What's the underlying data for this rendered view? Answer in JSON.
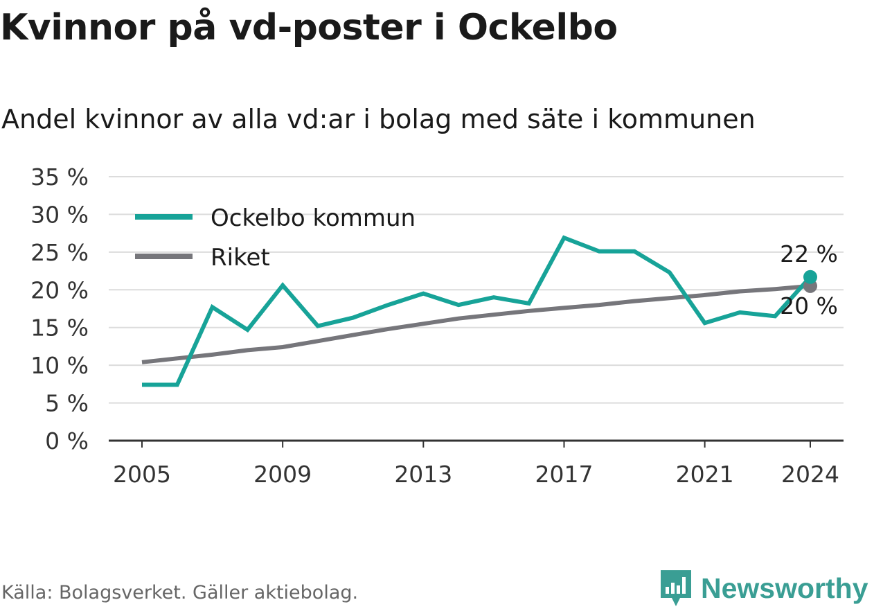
{
  "title": "Kvinnor på vd-poster i Ockelbo",
  "subtitle": "Andel kvinnor av alla vd:ar i bolag med säte i kommunen",
  "source": "Källa: Bolagsverket. Gäller aktiebolag.",
  "brand": {
    "name": "Newsworthy",
    "color": "#3a9e94",
    "icon": "bar-chart-icon"
  },
  "chart_data": {
    "type": "line",
    "x": [
      2005,
      2006,
      2007,
      2008,
      2009,
      2010,
      2011,
      2012,
      2013,
      2014,
      2015,
      2016,
      2017,
      2018,
      2019,
      2020,
      2021,
      2022,
      2023,
      2024
    ],
    "x_ticks": [
      "2005",
      "2009",
      "2013",
      "2017",
      "2021",
      "2024"
    ],
    "y_ticks": [
      "0 %",
      "5 %",
      "10 %",
      "15 %",
      "20 %",
      "25 %",
      "30 %",
      "35 %"
    ],
    "ylim": [
      0,
      35
    ],
    "grid": true,
    "legend_position": "top-left",
    "series": [
      {
        "name": "Ockelbo kommun",
        "color": "#17a398",
        "values": [
          7.4,
          7.4,
          17.7,
          14.7,
          20.6,
          15.2,
          16.3,
          18.0,
          19.5,
          18.0,
          19.0,
          18.2,
          26.9,
          25.1,
          25.1,
          22.3,
          15.6,
          17.0,
          16.5,
          21.7
        ],
        "end_label": "22 %"
      },
      {
        "name": "Riket",
        "color": "#76767b",
        "values": [
          10.4,
          10.9,
          11.4,
          12.0,
          12.4,
          13.2,
          14.0,
          14.8,
          15.5,
          16.2,
          16.7,
          17.2,
          17.6,
          18.0,
          18.5,
          18.9,
          19.3,
          19.8,
          20.1,
          20.5
        ],
        "end_label": "20 %"
      }
    ]
  }
}
